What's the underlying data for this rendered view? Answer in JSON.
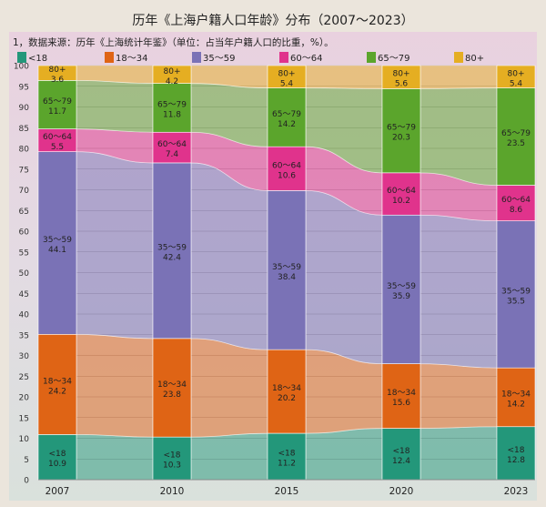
{
  "chart_data": {
    "type": "bar",
    "subtype": "stacked-100-with-ribbons",
    "title": "历年《上海户籍人口年龄》分布（2007～2023）",
    "note": "1，数据来源：历年《上海统计年鉴》（单位：占当年户籍人口的比重，%）。",
    "categories": [
      "2007",
      "2010",
      "2015",
      "2020",
      "2023"
    ],
    "ylim": [
      0,
      100
    ],
    "yticks": [
      0,
      5,
      10,
      15,
      20,
      25,
      30,
      35,
      40,
      45,
      50,
      55,
      60,
      65,
      70,
      75,
      80,
      85,
      90,
      95,
      100
    ],
    "grid": true,
    "legend_position": "top",
    "series": [
      {
        "name": "<18",
        "color": "#23977a",
        "values": [
          10.9,
          10.3,
          11.2,
          12.4,
          12.8
        ]
      },
      {
        "name": "18～34",
        "color": "#df6415",
        "values": [
          24.2,
          23.8,
          20.2,
          15.6,
          14.2
        ]
      },
      {
        "name": "35～59",
        "color": "#7a72b6",
        "values": [
          44.1,
          42.4,
          38.4,
          35.9,
          35.5
        ]
      },
      {
        "name": "60～64",
        "color": "#e0338c",
        "values": [
          5.5,
          7.4,
          10.6,
          10.2,
          8.6
        ]
      },
      {
        "name": "65～79",
        "color": "#5ba52c",
        "values": [
          11.7,
          11.8,
          14.2,
          20.3,
          23.5
        ]
      },
      {
        "name": "80+",
        "color": "#e5ae22",
        "values": [
          3.6,
          4.2,
          5.4,
          5.6,
          5.4
        ]
      }
    ],
    "value_labels": [
      [
        "10.9",
        "24.2",
        "44.1",
        "5.5",
        "11.7",
        "3.6"
      ],
      [
        "10.3",
        "23.8",
        "42.4",
        "7.4",
        "11.8",
        "4.2"
      ],
      [
        "11.2",
        "20.2",
        "38.4",
        "10.6",
        "14.2",
        "5.4"
      ],
      [
        "12.4",
        "15.6",
        "35.9",
        "10.2",
        "20.3",
        "5.6"
      ],
      [
        "12.8",
        "14.2",
        "35.5",
        "8.6",
        "23.5",
        "5.4"
      ]
    ]
  }
}
